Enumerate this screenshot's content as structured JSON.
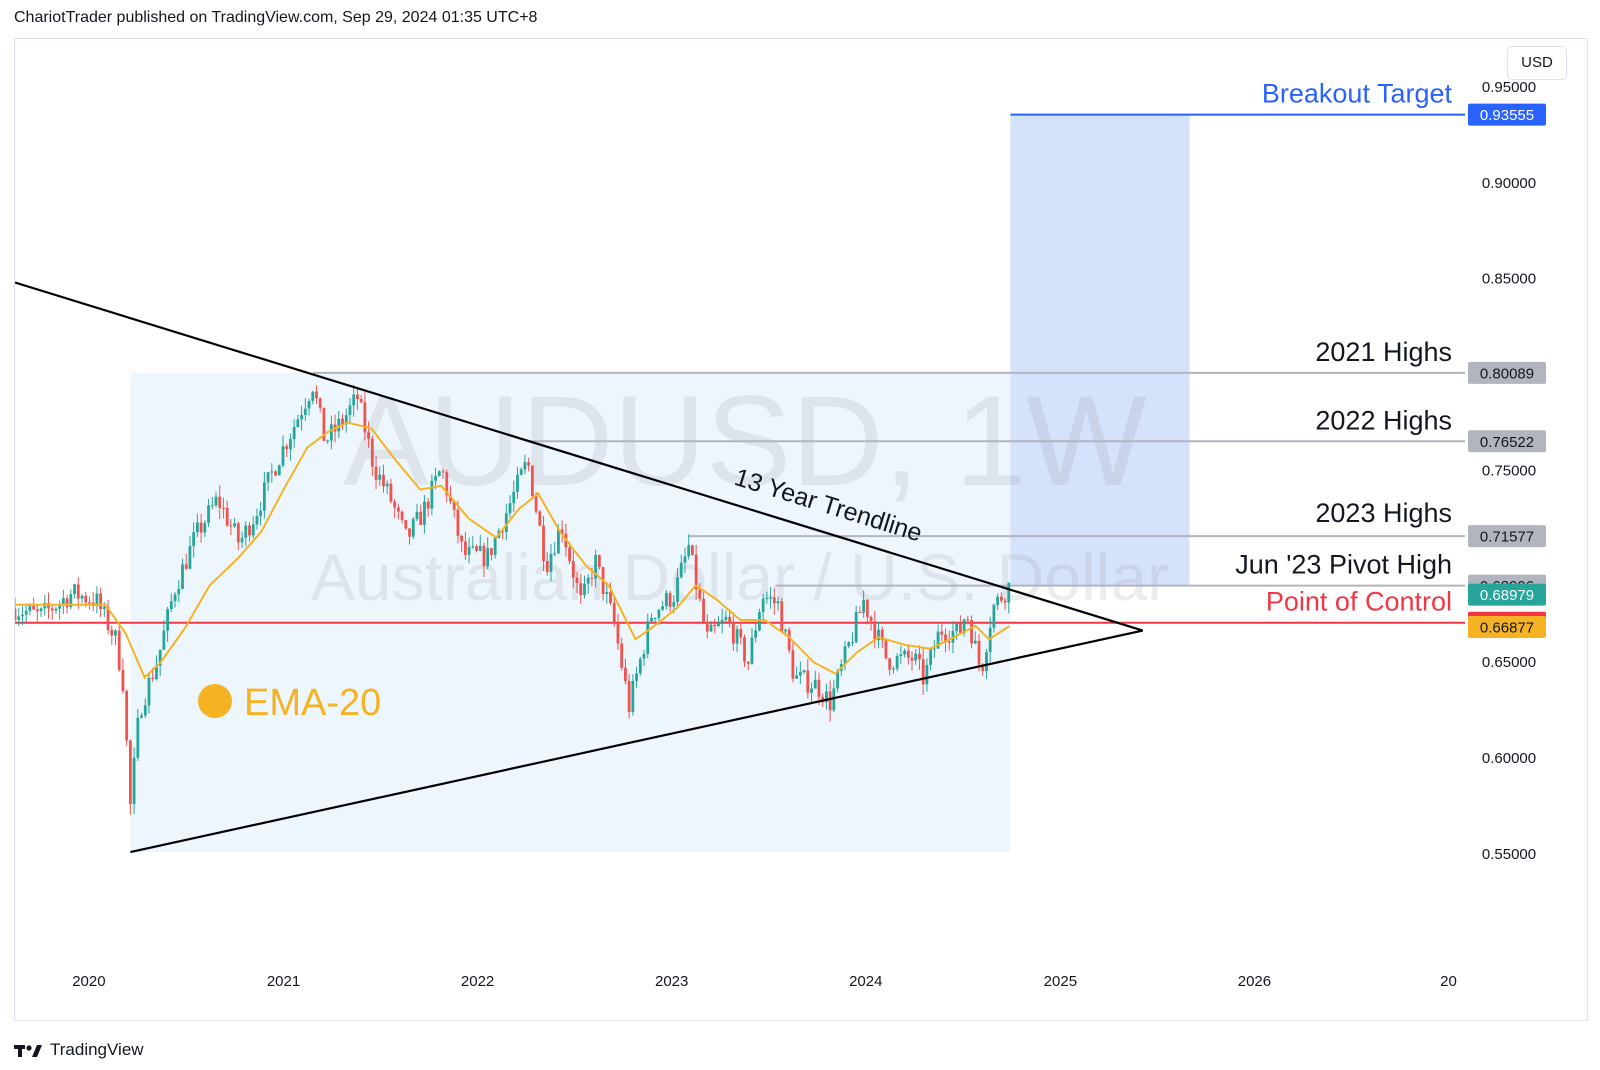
{
  "header": {
    "text": "ChariotTrader published on TradingView.com, Sep 29, 2024 01:35 UTC+8"
  },
  "currency": "USD",
  "footer": {
    "brand": "TradingView"
  },
  "colors": {
    "bull": "#26a69a",
    "bear": "#ef5350",
    "ema": "#f5b323",
    "trendline": "#000000",
    "poc": "#f23645",
    "target": "#2962ff",
    "target_zone": "#d3e0fc",
    "triangle_zone": "#eef6fd",
    "level_line": "#b2b5be",
    "level_badge": "#b2b5be"
  },
  "chart_data": {
    "type": "candlestick",
    "symbol": "AUDUSD",
    "timeframe": "1W",
    "watermark": {
      "symbol": "AUDUSD, 1W",
      "description": "Australian Dollar / U.S. Dollar"
    },
    "x_range": [
      "2019-08-15",
      "2027-02-01"
    ],
    "y_range": [
      0.49,
      0.975
    ],
    "y_ticks": [
      "0.55000",
      "0.60000",
      "0.65000",
      "0.75000",
      "0.85000",
      "0.90000",
      "0.95000"
    ],
    "x_ticks": [
      {
        "label": "2020",
        "x": "2020-01-01"
      },
      {
        "label": "2021",
        "x": "2021-01-01"
      },
      {
        "label": "2022",
        "x": "2022-01-01"
      },
      {
        "label": "2023",
        "x": "2023-01-01"
      },
      {
        "label": "2024",
        "x": "2024-01-01"
      },
      {
        "label": "2025",
        "x": "2025-01-01"
      },
      {
        "label": "2026",
        "x": "2026-01-01"
      },
      {
        "label": "20",
        "x": "2027-01-01"
      }
    ],
    "close_path": [
      [
        "2019-08-15",
        0.678
      ],
      [
        "2019-10-01",
        0.674
      ],
      [
        "2019-12-01",
        0.686
      ],
      [
        "2020-01-15",
        0.682
      ],
      [
        "2020-02-20",
        0.662
      ],
      [
        "2020-03-05",
        0.64
      ],
      [
        "2020-03-19",
        0.575
      ],
      [
        "2020-04-05",
        0.625
      ],
      [
        "2020-05-10",
        0.652
      ],
      [
        "2020-06-10",
        0.688
      ],
      [
        "2020-07-20",
        0.716
      ],
      [
        "2020-08-30",
        0.735
      ],
      [
        "2020-10-10",
        0.712
      ],
      [
        "2020-11-10",
        0.728
      ],
      [
        "2020-12-20",
        0.755
      ],
      [
        "2021-01-20",
        0.773
      ],
      [
        "2021-02-25",
        0.795
      ],
      [
        "2021-03-20",
        0.765
      ],
      [
        "2021-04-20",
        0.775
      ],
      [
        "2021-05-20",
        0.788
      ],
      [
        "2021-06-20",
        0.752
      ],
      [
        "2021-07-20",
        0.736
      ],
      [
        "2021-08-20",
        0.714
      ],
      [
        "2021-09-20",
        0.728
      ],
      [
        "2021-10-25",
        0.751
      ],
      [
        "2021-12-05",
        0.706
      ],
      [
        "2022-01-20",
        0.705
      ],
      [
        "2022-02-15",
        0.722
      ],
      [
        "2022-04-05",
        0.755
      ],
      [
        "2022-05-10",
        0.701
      ],
      [
        "2022-06-08",
        0.722
      ],
      [
        "2022-07-15",
        0.68
      ],
      [
        "2022-08-10",
        0.703
      ],
      [
        "2022-09-15",
        0.67
      ],
      [
        "2022-10-13",
        0.627
      ],
      [
        "2022-11-25",
        0.676
      ],
      [
        "2023-01-05",
        0.685
      ],
      [
        "2023-02-02",
        0.71
      ],
      [
        "2023-03-08",
        0.662
      ],
      [
        "2023-04-15",
        0.672
      ],
      [
        "2023-05-25",
        0.65
      ],
      [
        "2023-06-20",
        0.685
      ],
      [
        "2023-07-20",
        0.68
      ],
      [
        "2023-08-20",
        0.642
      ],
      [
        "2023-10-01",
        0.638
      ],
      [
        "2023-10-26",
        0.629
      ],
      [
        "2023-12-28",
        0.682
      ],
      [
        "2024-02-10",
        0.651
      ],
      [
        "2024-04-01",
        0.652
      ],
      [
        "2024-04-19",
        0.641
      ],
      [
        "2024-05-20",
        0.667
      ],
      [
        "2024-06-25",
        0.665
      ],
      [
        "2024-07-08",
        0.677
      ],
      [
        "2024-08-05",
        0.645
      ],
      [
        "2024-08-26",
        0.678
      ],
      [
        "2024-09-27",
        0.69
      ]
    ],
    "ema_path": [
      [
        "2019-08-15",
        0.68
      ],
      [
        "2019-12-01",
        0.68
      ],
      [
        "2020-02-01",
        0.68
      ],
      [
        "2020-03-10",
        0.665
      ],
      [
        "2020-04-15",
        0.642
      ],
      [
        "2020-05-15",
        0.65
      ],
      [
        "2020-06-30",
        0.668
      ],
      [
        "2020-08-15",
        0.69
      ],
      [
        "2020-10-10",
        0.705
      ],
      [
        "2020-11-20",
        0.718
      ],
      [
        "2021-01-05",
        0.742
      ],
      [
        "2021-02-15",
        0.762
      ],
      [
        "2021-03-25",
        0.77
      ],
      [
        "2021-05-01",
        0.775
      ],
      [
        "2021-06-15",
        0.772
      ],
      [
        "2021-08-01",
        0.755
      ],
      [
        "2021-09-15",
        0.74
      ],
      [
        "2021-10-25",
        0.742
      ],
      [
        "2021-12-15",
        0.725
      ],
      [
        "2022-02-05",
        0.715
      ],
      [
        "2022-03-20",
        0.73
      ],
      [
        "2022-04-25",
        0.738
      ],
      [
        "2022-06-05",
        0.718
      ],
      [
        "2022-07-25",
        0.7
      ],
      [
        "2022-09-05",
        0.69
      ],
      [
        "2022-10-25",
        0.662
      ],
      [
        "2022-11-25",
        0.668
      ],
      [
        "2023-01-10",
        0.678
      ],
      [
        "2023-02-15",
        0.69
      ],
      [
        "2023-03-25",
        0.683
      ],
      [
        "2023-05-10",
        0.672
      ],
      [
        "2023-06-25",
        0.672
      ],
      [
        "2023-08-10",
        0.663
      ],
      [
        "2023-09-25",
        0.65
      ],
      [
        "2023-11-05",
        0.644
      ],
      [
        "2023-12-15",
        0.655
      ],
      [
        "2024-01-25",
        0.663
      ],
      [
        "2024-03-15",
        0.659
      ],
      [
        "2024-05-01",
        0.657
      ],
      [
        "2024-06-15",
        0.663
      ],
      [
        "2024-07-25",
        0.669
      ],
      [
        "2024-08-20",
        0.662
      ],
      [
        "2024-09-27",
        0.6688
      ]
    ],
    "triangle_zone": {
      "x": [
        "2020-03-19",
        "2024-09-29"
      ],
      "y": [
        0.551,
        0.801
      ]
    },
    "target_zone": {
      "x": [
        "2024-09-29",
        "2025-09-01"
      ],
      "y": [
        0.6898,
        0.93555
      ]
    },
    "trendlines": [
      {
        "from": [
          "2019-08-15",
          0.848
        ],
        "to": [
          "2025-06-05",
          0.6665
        ]
      },
      {
        "from": [
          "2020-03-19",
          0.551
        ],
        "to": [
          "2025-06-05",
          0.6665
        ]
      }
    ],
    "annotations": {
      "trendline_label": "13 Year Trendline",
      "ema_legend": "EMA-20"
    },
    "levels": [
      {
        "name": "Breakout Target",
        "value": 0.93555,
        "badge": "0.93555",
        "from": "2024-09-29",
        "style": "target"
      },
      {
        "name": "2021 Highs",
        "value": 0.80089,
        "badge": "0.80089",
        "from": "2021-02-25",
        "style": "level"
      },
      {
        "name": "2022 Highs",
        "value": 0.76522,
        "badge": "0.76522",
        "from": "2022-04-05",
        "style": "level"
      },
      {
        "name": "2023 Highs",
        "value": 0.71577,
        "badge": "0.71577",
        "from": "2023-02-02",
        "style": "level"
      },
      {
        "name": "Jun '23 Pivot High",
        "value": 0.68996,
        "badge": "0.68996",
        "from": "2023-07-15",
        "style": "level"
      },
      {
        "name": "Point of Control",
        "value": 0.67058,
        "badge": "0.67058",
        "from": "2019-08-15",
        "style": "poc"
      }
    ],
    "price_badges": [
      {
        "value": 0.68979,
        "label": "0.68979",
        "role": "last-price"
      },
      {
        "value": 0.66877,
        "label": "0.66877",
        "role": "ema-value"
      }
    ]
  }
}
